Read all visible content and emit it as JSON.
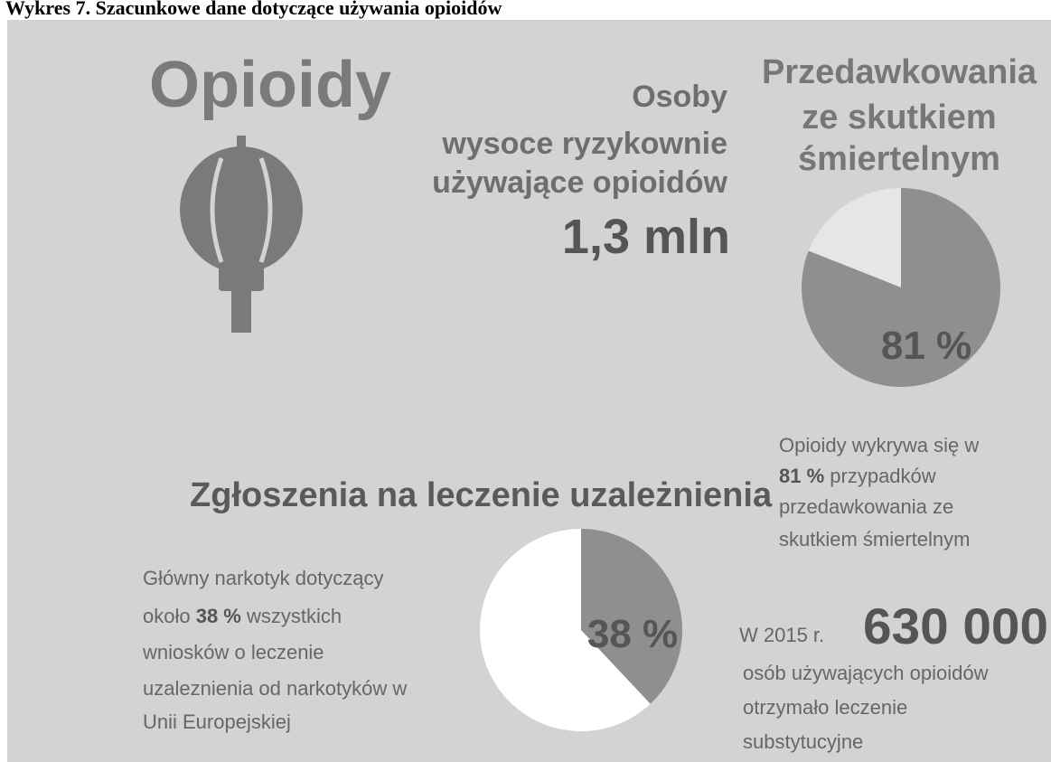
{
  "caption": "Wykres 7. Szacunkowe dane dotyczące używania opioidów",
  "title": "Opioidy",
  "high_risk": {
    "lines": [
      "Osoby",
      "wysoce ryzykownie",
      "używające opioidów"
    ],
    "value_label": "1,3 mln"
  },
  "overdoses": {
    "title_lines": [
      "Przedawkowania",
      "ze skutkiem",
      "śmiertelnym"
    ],
    "pie": {
      "value": 81,
      "value_label": "81 %"
    },
    "note": [
      [
        {
          "text": "Opioidy wykrywa się w"
        }
      ],
      [
        {
          "text": "81 %",
          "bold": true
        },
        {
          "text": " przypadków"
        }
      ],
      [
        {
          "text": "przedawkowania ze"
        }
      ],
      [
        {
          "text": "skutkiem śmiertelnym"
        }
      ]
    ]
  },
  "treatment": {
    "title": "Zgłoszenia na leczenie uzależnienia",
    "pie": {
      "value": 38,
      "value_label": "38 %"
    },
    "note": [
      [
        {
          "text": "Główny narkotyk dotyczący"
        }
      ],
      [
        {
          "text": "około "
        },
        {
          "text": "38 %",
          "bold": true
        },
        {
          "text": " wszystkich"
        }
      ],
      [
        {
          "text": "wniosków o leczenie"
        }
      ],
      [
        {
          "text": "uzaleznienia od narkotyków w"
        }
      ],
      [
        {
          "text": "Unii Europejskiej"
        }
      ]
    ]
  },
  "substitution": {
    "prefix": "W 2015 r.",
    "value_label": "630 000",
    "lines": [
      "osób używających opioidów",
      "otrzymało leczenie",
      "substytucyjne"
    ]
  }
}
